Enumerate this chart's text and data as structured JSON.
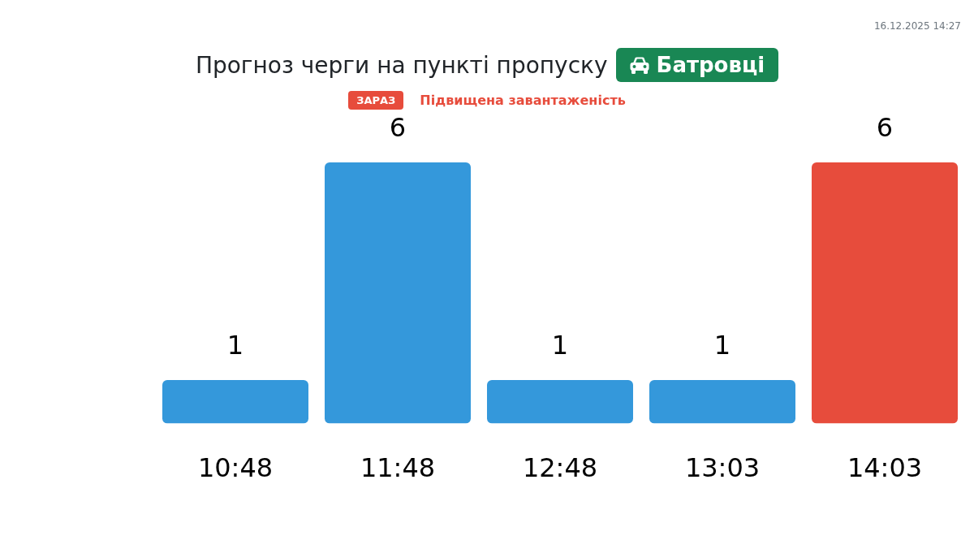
{
  "chart_data": {
    "type": "bar",
    "title": "Прогноз черги на пункті пропуску",
    "categories": [
      "10:48",
      "11:48",
      "12:48",
      "13:03",
      "14:03"
    ],
    "values": [
      1,
      6,
      1,
      1,
      6
    ],
    "colors": [
      "#3498db",
      "#3498db",
      "#3498db",
      "#3498db",
      "#e74c3c"
    ],
    "data_labels": true,
    "grid": false,
    "legend": false,
    "tick_labels": "x",
    "annotations": [
      "Батровці",
      "ЗАРАЗ",
      "Підвищена завантаженість",
      "16.12.2025 14:27"
    ]
  }
}
